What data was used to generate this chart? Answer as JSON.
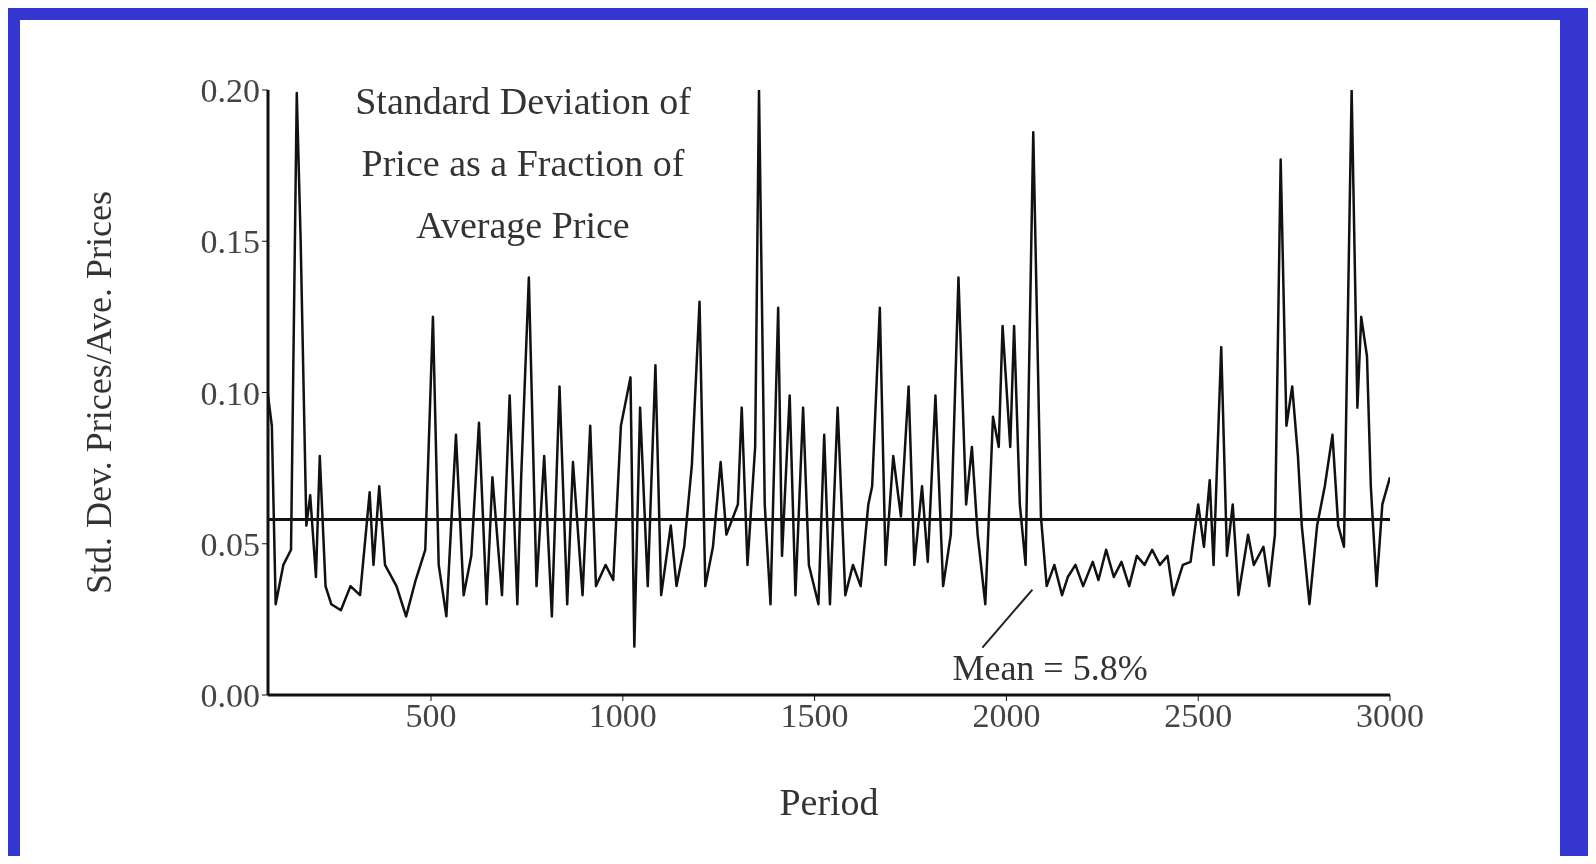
{
  "chart_data": {
    "type": "line",
    "xlabel": "Period",
    "ylabel": "Std. Dev. Prices/Ave. Prices",
    "annotations": [
      "Standard Deviation of Price as a Fraction of Average Price"
    ],
    "xlim": [
      75,
      3000
    ],
    "ylim": [
      0,
      0.2
    ],
    "xticks": [
      500,
      1000,
      1500,
      2000,
      2500,
      3000
    ],
    "yticks": [
      {
        "value": 0,
        "label": "0.00"
      },
      {
        "value": 0.05,
        "label": "0.05"
      },
      {
        "value": 0.1,
        "label": "0.10"
      },
      {
        "value": 0.15,
        "label": "0.15"
      },
      {
        "value": 0.2,
        "label": "0.20"
      }
    ],
    "ref_lines": [
      {
        "axis": "y",
        "value": 0.058,
        "label": "Mean = 5.8%",
        "color": "#111111"
      }
    ],
    "color": "#111111",
    "x": [
      75,
      85,
      95,
      115,
      135,
      150,
      160,
      175,
      185,
      200,
      210,
      225,
      240,
      265,
      290,
      315,
      340,
      350,
      365,
      380,
      410,
      435,
      460,
      485,
      505,
      520,
      540,
      565,
      585,
      605,
      625,
      645,
      660,
      685,
      705,
      725,
      735,
      755,
      775,
      795,
      815,
      835,
      855,
      870,
      895,
      915,
      930,
      955,
      975,
      995,
      1020,
      1030,
      1045,
      1065,
      1085,
      1100,
      1125,
      1140,
      1160,
      1180,
      1200,
      1215,
      1235,
      1255,
      1270,
      1300,
      1310,
      1325,
      1345,
      1355,
      1370,
      1385,
      1405,
      1415,
      1435,
      1450,
      1470,
      1485,
      1510,
      1525,
      1540,
      1560,
      1580,
      1600,
      1620,
      1640,
      1650,
      1670,
      1685,
      1705,
      1725,
      1745,
      1760,
      1780,
      1795,
      1815,
      1835,
      1855,
      1875,
      1895,
      1910,
      1925,
      1945,
      1965,
      1980,
      1990,
      2010,
      2020,
      2035,
      2050,
      2070,
      2090,
      2105,
      2125,
      2145,
      2160,
      2180,
      2200,
      2225,
      2240,
      2260,
      2280,
      2300,
      2320,
      2340,
      2360,
      2380,
      2400,
      2420,
      2435,
      2460,
      2480,
      2500,
      2515,
      2530,
      2540,
      2560,
      2575,
      2590,
      2605,
      2630,
      2645,
      2670,
      2685,
      2700,
      2715,
      2730,
      2745,
      2760,
      2770,
      2790,
      2810,
      2830,
      2850,
      2865,
      2880,
      2900,
      2915,
      2925,
      2940,
      2950,
      2965,
      2980,
      3000
    ],
    "values": [
      0.099,
      0.089,
      0.03,
      0.043,
      0.048,
      0.199,
      0.151,
      0.056,
      0.066,
      0.039,
      0.079,
      0.036,
      0.03,
      0.028,
      0.036,
      0.033,
      0.067,
      0.043,
      0.069,
      0.043,
      0.036,
      0.026,
      0.038,
      0.048,
      0.125,
      0.043,
      0.026,
      0.086,
      0.033,
      0.046,
      0.09,
      0.03,
      0.072,
      0.033,
      0.099,
      0.03,
      0.072,
      0.138,
      0.036,
      0.079,
      0.026,
      0.102,
      0.03,
      0.077,
      0.033,
      0.089,
      0.036,
      0.043,
      0.038,
      0.089,
      0.105,
      0.016,
      0.095,
      0.036,
      0.109,
      0.033,
      0.056,
      0.036,
      0.049,
      0.076,
      0.13,
      0.036,
      0.049,
      0.077,
      0.053,
      0.063,
      0.095,
      0.043,
      0.082,
      0.2,
      0.063,
      0.03,
      0.128,
      0.046,
      0.099,
      0.033,
      0.095,
      0.043,
      0.03,
      0.086,
      0.03,
      0.095,
      0.033,
      0.043,
      0.036,
      0.063,
      0.069,
      0.128,
      0.043,
      0.079,
      0.059,
      0.102,
      0.043,
      0.069,
      0.044,
      0.099,
      0.036,
      0.053,
      0.138,
      0.063,
      0.082,
      0.053,
      0.03,
      0.092,
      0.082,
      0.122,
      0.082,
      0.122,
      0.063,
      0.043,
      0.186,
      0.059,
      0.036,
      0.043,
      0.033,
      0.039,
      0.043,
      0.036,
      0.044,
      0.038,
      0.048,
      0.039,
      0.044,
      0.036,
      0.046,
      0.043,
      0.048,
      0.043,
      0.046,
      0.033,
      0.043,
      0.044,
      0.063,
      0.049,
      0.071,
      0.043,
      0.115,
      0.046,
      0.063,
      0.033,
      0.053,
      0.043,
      0.049,
      0.036,
      0.053,
      0.177,
      0.089,
      0.102,
      0.079,
      0.056,
      0.03,
      0.056,
      0.069,
      0.086,
      0.056,
      0.049,
      0.2,
      0.095,
      0.125,
      0.112,
      0.069,
      0.036,
      0.063,
      0.072
    ]
  }
}
